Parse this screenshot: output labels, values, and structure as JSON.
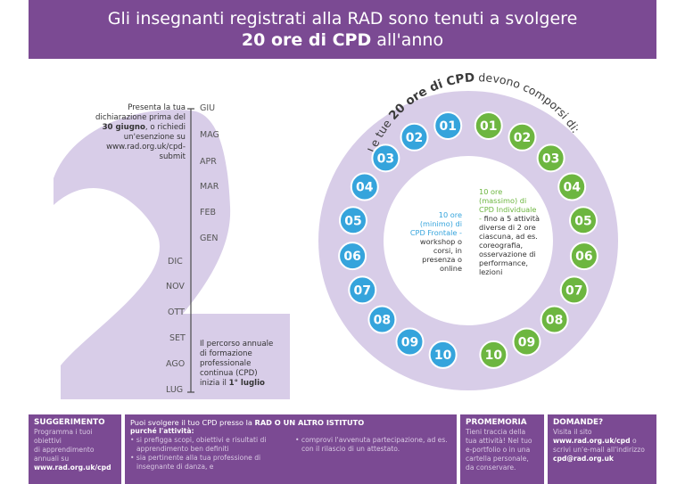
{
  "header": {
    "line1": "Gli insegnanti registrati alla RAD sono tenuti a svolgere",
    "line2_bold": "20 ore di CPD",
    "line2_rest": " all'anno"
  },
  "timeline": {
    "months_right": [
      "GIU",
      "MAG",
      "APR",
      "MAR",
      "FEB",
      "GEN"
    ],
    "months_left": [
      "DIC",
      "NOV",
      "OTT",
      "SET",
      "AGO",
      "LUG"
    ],
    "top_note": {
      "l1": "Presenta la tua",
      "l2": "dichiarazione prima del",
      "l3_bold": "30 giugno",
      "l3_rest": ", o richiedi",
      "l4": "un'esenzione su",
      "l5": "www.rad.org.uk/cpd-submit"
    },
    "bottom_note": {
      "l1": "Il percorso annuale",
      "l2": "di formazione",
      "l3": "professionale",
      "l4": "continua (CPD)",
      "l5": "inizia il",
      "l5_bold": "1° luglio"
    }
  },
  "circle": {
    "arc_text_pre": "Le tue ",
    "arc_text_bold": "20 ore di CPD",
    "arc_text_post": " devono comporsi di:",
    "left_numbers": [
      "01",
      "02",
      "03",
      "04",
      "05",
      "06",
      "07",
      "08",
      "09",
      "10"
    ],
    "right_numbers": [
      "01",
      "02",
      "03",
      "04",
      "05",
      "06",
      "07",
      "08",
      "09",
      "10"
    ],
    "left_block": {
      "title": "10 ore (minimo) di CPD Frontale -",
      "body": "workshop o corsi, in presenza o online"
    },
    "right_block": {
      "title": "10 ore (massimo) di CPD Individuale -",
      "body": "fino a 5 attività diverse di 2 ore ciascuna, ad es. coreografia, osservazione di performance, lezioni"
    }
  },
  "colors": {
    "purple": "#7b4a93",
    "lilac": "#d8cde8",
    "blue": "#35a4dc",
    "green": "#6db640"
  },
  "footer": {
    "tip": {
      "title": "SUGGERIMENTO",
      "l1": "Programma i tuoi",
      "l2": "obiettivi",
      "l3": "di apprendimento",
      "l4": "annuali su",
      "l5": "www.rad.org.uk/cpd"
    },
    "where": {
      "intro_pre": "Puoi svolgere il tuo CPD presso la ",
      "intro_bold": "RAD O UN ALTRO ISTITUTO",
      "cond": "purché l'attività:",
      "b1": "• si prefigga scopi, obiettivi e risultati di apprendimento ben definiti",
      "b2": "• sia pertinente alla tua professione di insegnante di danza, e",
      "b3": "• comprovi l'avvenuta partecipazione, ad es. con il rilascio di un attestato."
    },
    "reminder": {
      "title": "PROMEMORIA",
      "text": "Tieni traccia della tua attività! Nel tuo e-portfolio o in una cartella personale, da conservare."
    },
    "questions": {
      "title": "DOMANDE?",
      "l1": "Visita il sito",
      "l2_bold": "www.rad.org.uk/cpd",
      "l2_rest": " o",
      "l3": "scrivi un'e-mail all'indirizzo",
      "l4": "cpd@rad.org.uk"
    }
  }
}
